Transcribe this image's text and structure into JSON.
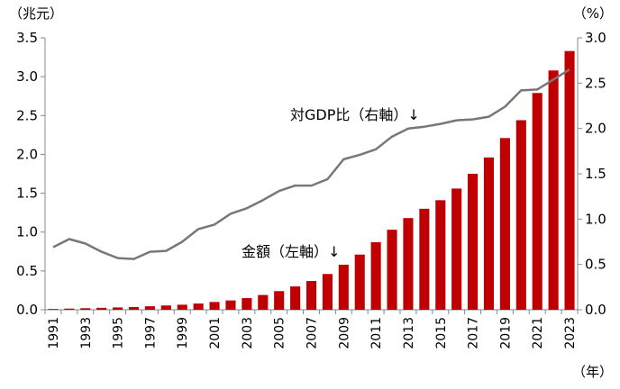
{
  "chart_data": {
    "type": "bar+line",
    "x": [
      1991,
      1992,
      1993,
      1994,
      1995,
      1996,
      1997,
      1998,
      1999,
      2000,
      2001,
      2002,
      2003,
      2004,
      2005,
      2006,
      2007,
      2008,
      2009,
      2010,
      2011,
      2012,
      2013,
      2014,
      2015,
      2016,
      2017,
      2018,
      2019,
      2020,
      2021,
      2022,
      2023
    ],
    "x_tick_labels": [
      "1991",
      "1993",
      "1995",
      "1997",
      "1999",
      "2001",
      "2003",
      "2005",
      "2007",
      "2009",
      "2011",
      "2013",
      "2015",
      "2017",
      "2019",
      "2021",
      "2023"
    ],
    "series": [
      {
        "name": "金額",
        "type": "bar",
        "axis": "left",
        "color": "#c00000",
        "values": [
          0.01,
          0.015,
          0.02,
          0.025,
          0.03,
          0.035,
          0.045,
          0.055,
          0.065,
          0.08,
          0.1,
          0.12,
          0.15,
          0.19,
          0.24,
          0.3,
          0.37,
          0.46,
          0.58,
          0.71,
          0.87,
          1.03,
          1.18,
          1.3,
          1.41,
          1.56,
          1.75,
          1.96,
          2.21,
          2.44,
          2.79,
          3.08,
          3.33
        ]
      },
      {
        "name": "対GDP比",
        "type": "line",
        "axis": "right",
        "color": "#777777",
        "values": [
          0.69,
          0.78,
          0.73,
          0.64,
          0.57,
          0.56,
          0.64,
          0.65,
          0.75,
          0.89,
          0.94,
          1.06,
          1.12,
          1.21,
          1.31,
          1.37,
          1.37,
          1.44,
          1.66,
          1.71,
          1.77,
          1.91,
          2.0,
          2.02,
          2.05,
          2.09,
          2.1,
          2.13,
          2.24,
          2.42,
          2.43,
          2.54,
          2.65
        ]
      }
    ],
    "left_axis": {
      "unit": "（兆元）",
      "ylim": [
        0,
        3.5
      ],
      "ticks": [
        "0.0",
        "0.5",
        "1.0",
        "1.5",
        "2.0",
        "2.5",
        "3.0",
        "3.5"
      ]
    },
    "right_axis": {
      "unit": "（%）",
      "ylim": [
        0,
        3.0
      ],
      "ticks": [
        "0.0",
        "0.5",
        "1.0",
        "1.5",
        "2.0",
        "2.5",
        "3.0"
      ]
    },
    "x_unit": "（年）",
    "annotations": {
      "line_label": "対GDP比（右軸）↓",
      "bar_label": "金額（左軸）↓"
    },
    "grid": false
  }
}
